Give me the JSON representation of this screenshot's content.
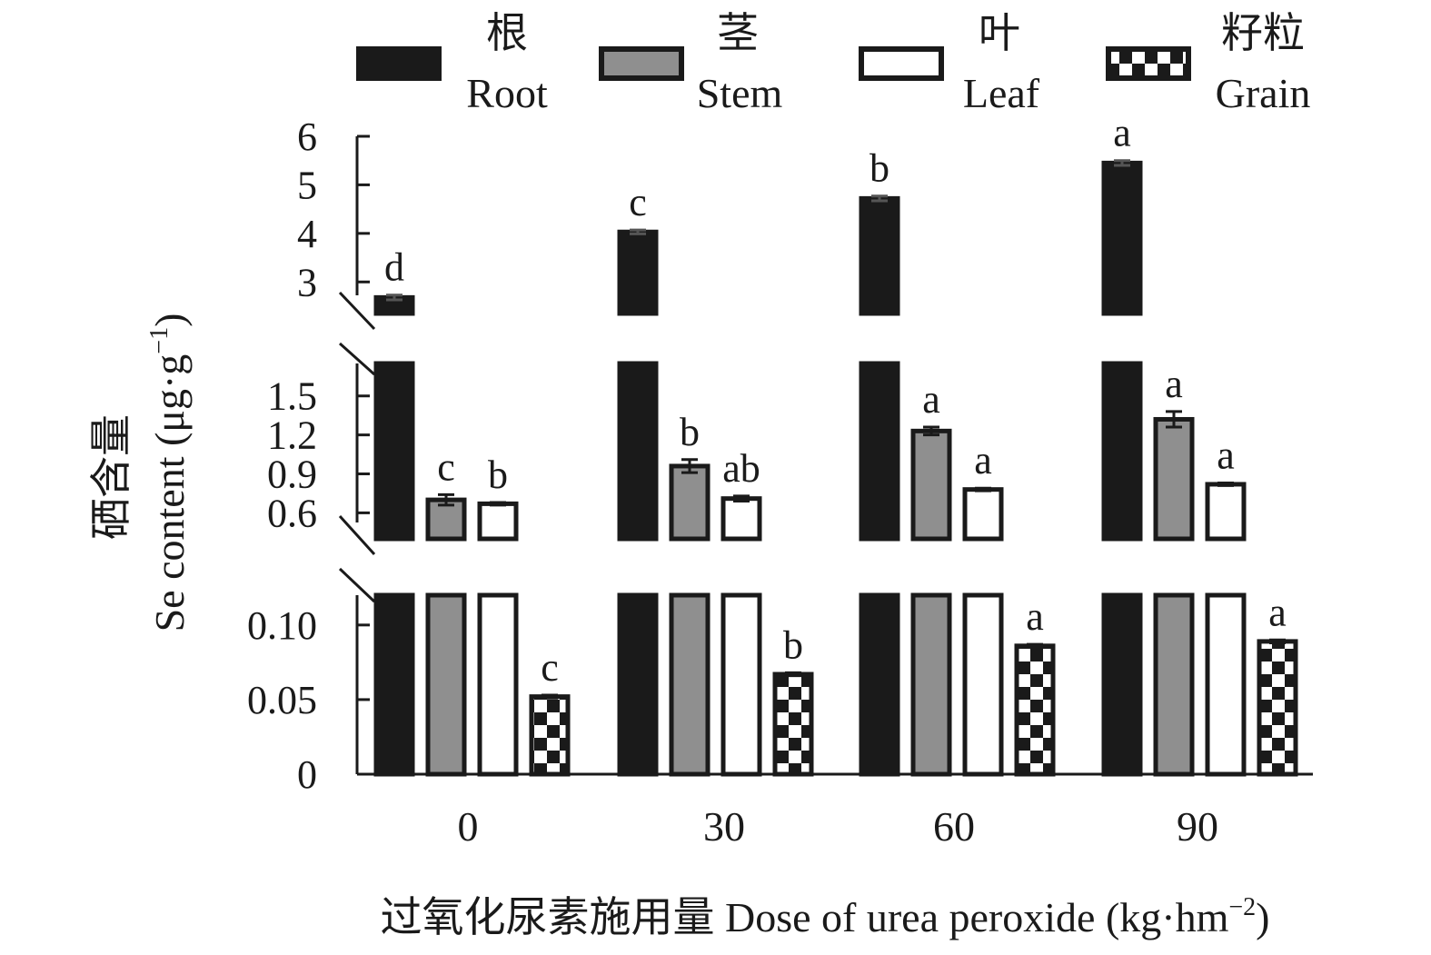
{
  "chart_data": {
    "type": "bar",
    "categories": [
      "0",
      "30",
      "60",
      "90"
    ],
    "xlabel": "过氧化尿素施用量 Dose of urea peroxide (kg·hm",
    "xlabel_sup": "−2",
    "xlabel_close": ")",
    "ylabel_cn": "硒含量",
    "ylabel_en": "Se content (μg·g",
    "ylabel_sup": "−1",
    "ylabel_close": ")",
    "broken_axis": true,
    "panels": [
      {
        "name": "top",
        "ylim": [
          2.35,
          6.0
        ],
        "ticks": [
          "3",
          "4",
          "5",
          "6"
        ]
      },
      {
        "name": "middle",
        "ylim": [
          0.4,
          1.75
        ],
        "ticks": [
          "0.6",
          "0.9",
          "1.2",
          "1.5"
        ]
      },
      {
        "name": "bottom",
        "ylim": [
          0,
          0.12
        ],
        "ticks": [
          "0",
          "0.05",
          "0.10"
        ]
      }
    ],
    "series": [
      {
        "name": "Root",
        "name_cn": "根",
        "pattern": "solid-dark",
        "panel": "top",
        "values": [
          2.68,
          4.03,
          4.72,
          5.45
        ],
        "errors": [
          0.05,
          0.04,
          0.05,
          0.05
        ],
        "letters": [
          "d",
          "c",
          "b",
          "a"
        ]
      },
      {
        "name": "Stem",
        "name_cn": "茎",
        "pattern": "gray",
        "panel": "middle",
        "values": [
          0.7,
          0.96,
          1.23,
          1.32
        ],
        "errors": [
          0.04,
          0.05,
          0.03,
          0.06
        ],
        "letters": [
          "c",
          "b",
          "a",
          "a"
        ]
      },
      {
        "name": "Leaf",
        "name_cn": "叶",
        "pattern": "white",
        "panel": "middle",
        "values": [
          0.67,
          0.71,
          0.78,
          0.82
        ],
        "errors": [
          0.01,
          0.02,
          0.01,
          0.01
        ],
        "letters": [
          "b",
          "ab",
          "a",
          "a"
        ]
      },
      {
        "name": "Grain",
        "name_cn": "籽粒",
        "pattern": "checker",
        "panel": "bottom",
        "values": [
          0.052,
          0.067,
          0.086,
          0.089
        ],
        "errors": [
          0.001,
          0.001,
          0.001,
          0.001
        ],
        "letters": [
          "c",
          "b",
          "a",
          "a"
        ]
      }
    ],
    "legend_position": "top",
    "grid": false
  }
}
